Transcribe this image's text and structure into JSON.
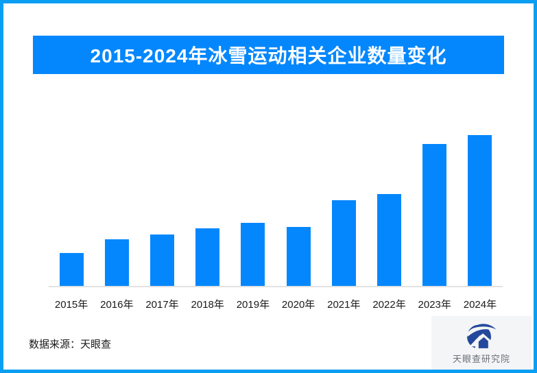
{
  "page": {
    "border_color": "#0a9ef3",
    "background": "#ffffff"
  },
  "banner": {
    "title": "2015-2024年冰雪运动相关企业数量变化",
    "bg_color": "#0487fd",
    "text_color": "#ffffff"
  },
  "chart_data": {
    "type": "bar",
    "title": "2015-2024年冰雪运动相关企业数量变化",
    "categories": [
      "2015年",
      "2016年",
      "2017年",
      "2018年",
      "2019年",
      "2020年",
      "2021年",
      "2022年",
      "2023年",
      "2024年"
    ],
    "values": [
      22,
      31,
      34,
      38,
      42,
      39,
      57,
      61,
      94,
      100
    ],
    "value_note": "chart shows no numeric axis, gridlines or data labels; values are relative bar heights with the tallest (2024) = 100",
    "bar_color": "#0487fd",
    "axis_line_color": "#e2e2e2",
    "xlabel": "",
    "ylabel": "",
    "grid": false,
    "legend": false
  },
  "footer": {
    "source_text": "数据来源：天眼查"
  },
  "logo": {
    "text": "天眼查研究院",
    "mark_color": "#24489c",
    "bg_color": "#f3f5f6",
    "text_color": "#6b7078"
  }
}
